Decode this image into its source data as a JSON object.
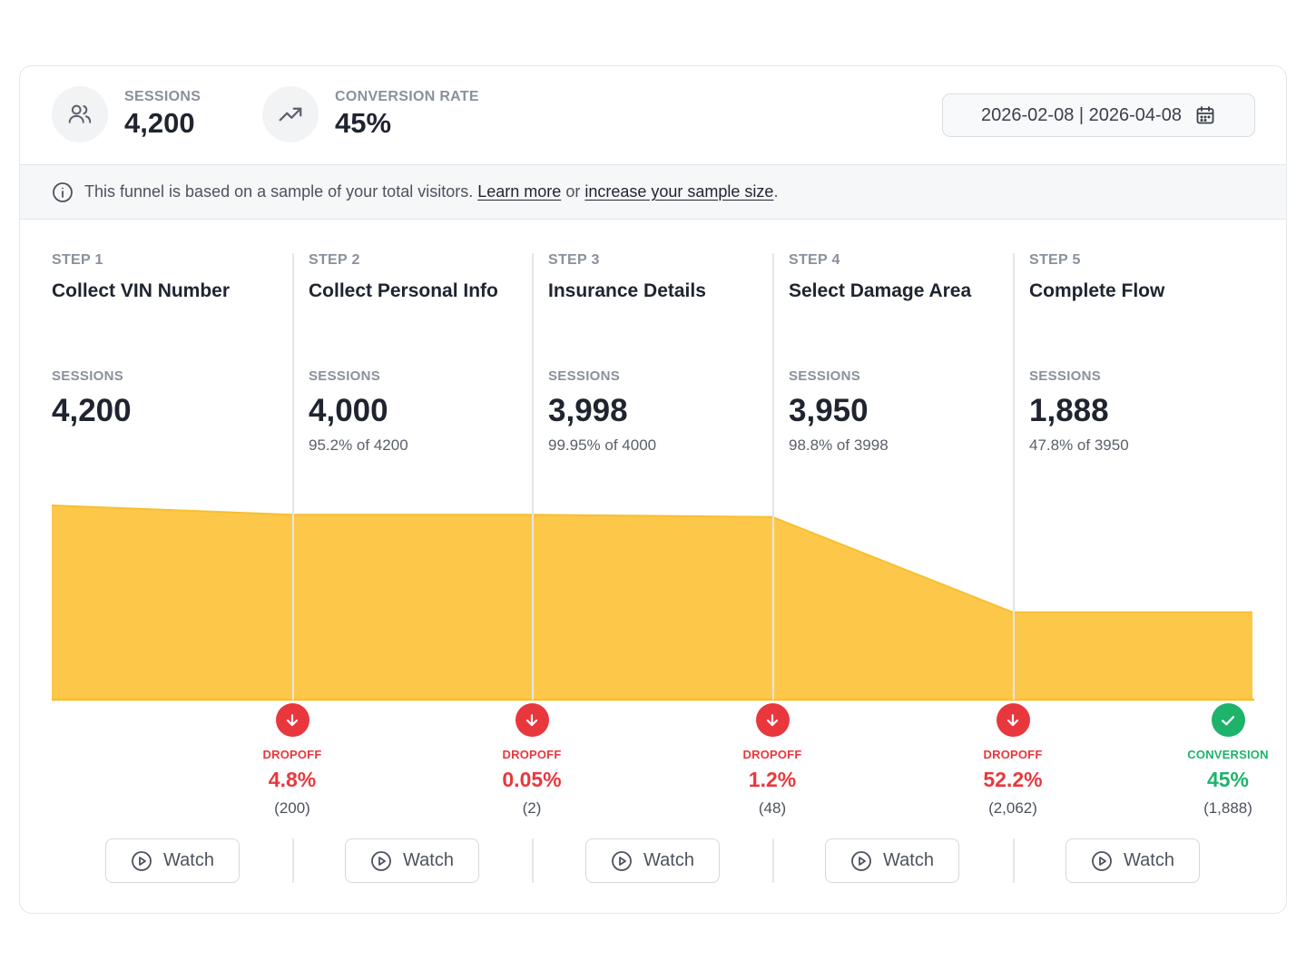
{
  "header": {
    "sessions": {
      "label": "SESSIONS",
      "value": "4,200",
      "icon": "users-icon"
    },
    "conversion": {
      "label": "CONVERSION RATE",
      "value": "45%",
      "icon": "trending-up-icon"
    },
    "date_range": {
      "value": "2026-02-08 | 2026-04-08",
      "icon": "calendar-icon"
    }
  },
  "banner": {
    "icon": "info-icon",
    "text": "This funnel is based on a sample of your total visitors.",
    "link1": "Learn more",
    "middle": "or",
    "link2": "increase your sample size",
    "end": "."
  },
  "steps": [
    {
      "step": "STEP 1",
      "title": "Collect VIN Number",
      "sessions_label": "SESSIONS",
      "sessions": "4,200",
      "pct": ""
    },
    {
      "step": "STEP 2",
      "title": "Collect Personal Info",
      "sessions_label": "SESSIONS",
      "sessions": "4,000",
      "pct": "95.2% of 4200"
    },
    {
      "step": "STEP 3",
      "title": "Insurance Details",
      "sessions_label": "SESSIONS",
      "sessions": "3,998",
      "pct": "99.95% of 4000"
    },
    {
      "step": "STEP 4",
      "title": "Select Damage Area",
      "sessions_label": "SESSIONS",
      "sessions": "3,950",
      "pct": "98.8% of 3998"
    },
    {
      "step": "STEP 5",
      "title": "Complete Flow",
      "sessions_label": "SESSIONS",
      "sessions": "1,888",
      "pct": "47.8% of 3950"
    }
  ],
  "outcomes": [
    {
      "label": "DROPOFF",
      "pct": "4.8%",
      "count": "(200)",
      "icon": "arrow-down-icon"
    },
    {
      "label": "DROPOFF",
      "pct": "0.05%",
      "count": "(2)",
      "icon": "arrow-down-icon"
    },
    {
      "label": "DROPOFF",
      "pct": "1.2%",
      "count": "(48)",
      "icon": "arrow-down-icon"
    },
    {
      "label": "DROPOFF",
      "pct": "52.2%",
      "count": "(2,062)",
      "icon": "arrow-down-icon"
    },
    {
      "label": "CONVERSION",
      "pct": "45%",
      "count": "(1,888)",
      "icon": "check-icon"
    }
  ],
  "watch": {
    "label": "Watch",
    "icon": "play-circle-icon"
  },
  "colors": {
    "funnel_fill": "#fdc84a",
    "funnel_stroke": "#f8bf2e",
    "dropoff": "#e8383d",
    "conversion": "#1db36a"
  },
  "funnel_values": [
    4200,
    4000,
    3998,
    3950,
    1888
  ]
}
